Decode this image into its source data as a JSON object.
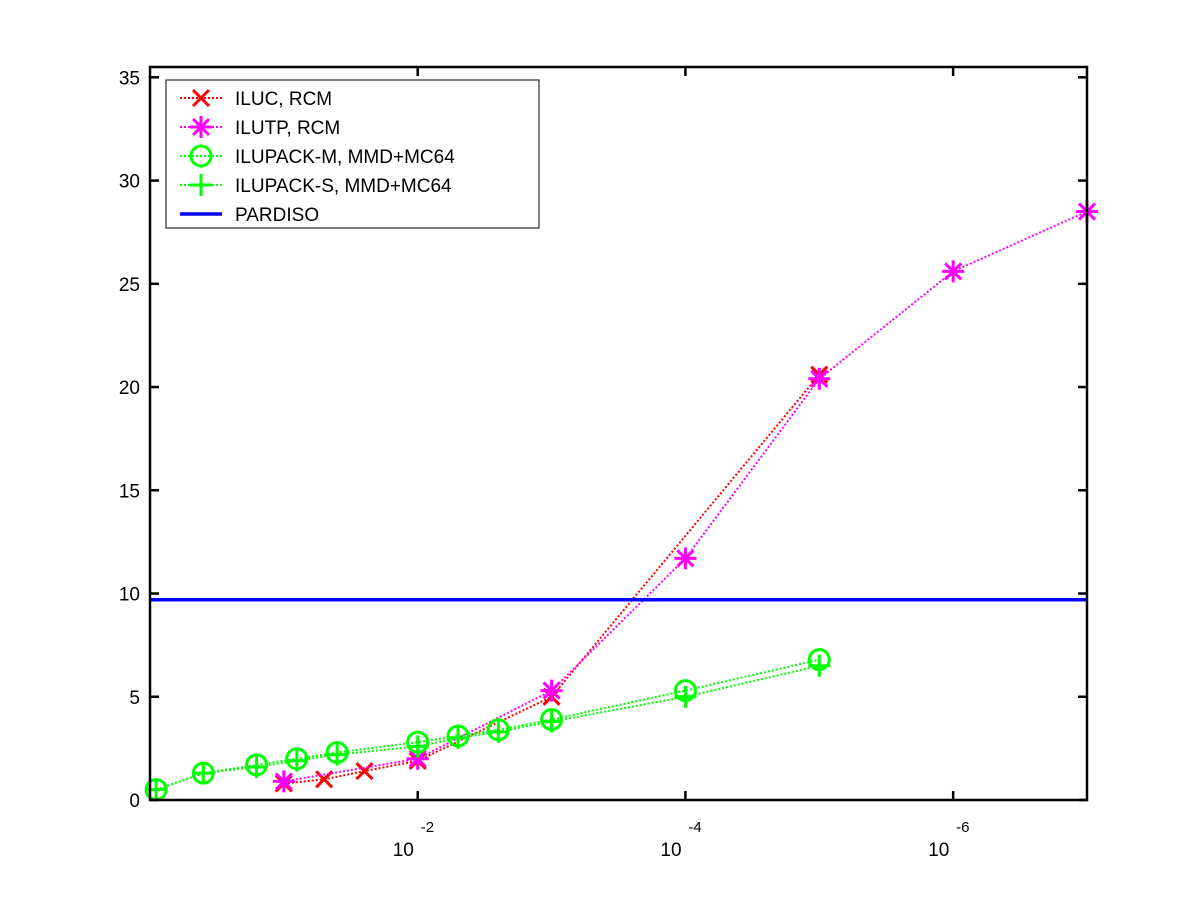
{
  "chart_data": {
    "type": "line",
    "x_scale": "log-reversed",
    "xlim": [
      1,
      1e-07
    ],
    "ylim": [
      0,
      35.5
    ],
    "y_ticks": [
      0,
      5,
      10,
      15,
      20,
      25,
      30,
      35
    ],
    "x_ticks": [
      {
        "value": 0.01,
        "base": "10",
        "exp": "-2"
      },
      {
        "value": 0.0001,
        "base": "10",
        "exp": "-4"
      },
      {
        "value": 1e-06,
        "base": "10",
        "exp": "-6"
      }
    ],
    "legend_position": "top-left",
    "grid": false,
    "series": [
      {
        "name": "ILUC, RCM",
        "color": "#ff0000",
        "line": "dotted",
        "marker": "x",
        "x": [
          0.1,
          0.05,
          0.025,
          0.01,
          0.001,
          1e-05
        ],
        "y": [
          0.8,
          1.0,
          1.4,
          1.9,
          5.0,
          20.6
        ]
      },
      {
        "name": "ILUTP, RCM",
        "color": "#ff00ff",
        "line": "dotted",
        "marker": "star",
        "x": [
          0.1,
          0.01,
          0.001,
          0.0001,
          1e-05,
          1e-06,
          1e-07
        ],
        "y": [
          0.9,
          2.0,
          5.3,
          11.7,
          20.4,
          25.6,
          28.5
        ]
      },
      {
        "name": "ILUPACK-M, MMD+MC64",
        "color": "#00ff00",
        "line": "dotted",
        "marker": "circle",
        "x": [
          0.9,
          0.4,
          0.16,
          0.08,
          0.04,
          0.01,
          0.005,
          0.0025,
          0.001,
          0.0001,
          1e-05
        ],
        "y": [
          0.5,
          1.3,
          1.7,
          2.0,
          2.3,
          2.8,
          3.1,
          3.4,
          3.9,
          5.3,
          6.8
        ]
      },
      {
        "name": "ILUPACK-S, MMD+MC64",
        "color": "#00ff00",
        "line": "dotted",
        "marker": "plus",
        "x": [
          0.9,
          0.4,
          0.16,
          0.08,
          0.04,
          0.01,
          0.005,
          0.0025,
          0.001,
          0.0001,
          1e-05
        ],
        "y": [
          0.5,
          1.3,
          1.6,
          1.9,
          2.2,
          2.6,
          3.0,
          3.3,
          3.8,
          5.0,
          6.5
        ]
      },
      {
        "name": "PARDISO",
        "color": "#0000ff",
        "line": "solid",
        "marker": "none",
        "x": [
          1,
          1e-07
        ],
        "y": [
          9.7,
          9.7
        ]
      }
    ]
  }
}
